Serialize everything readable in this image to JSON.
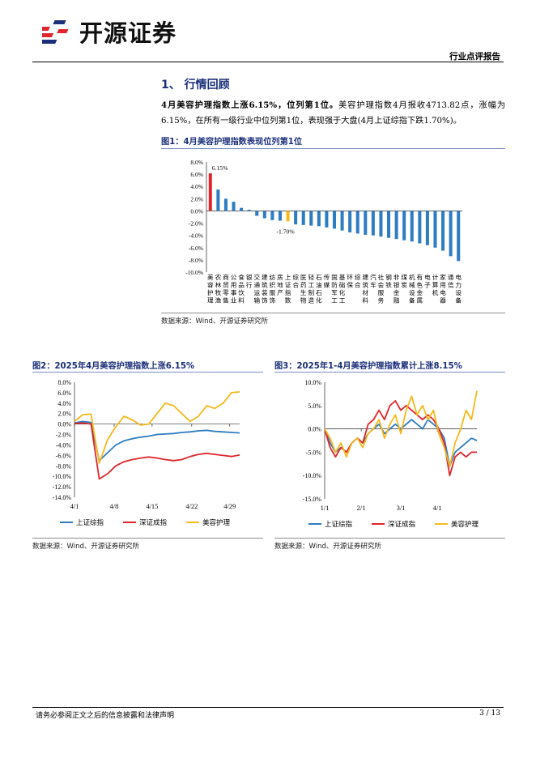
{
  "header": {
    "logo_text": "开源证券",
    "report_type": "行业点评报告"
  },
  "section": {
    "title": "1、 行情回顾",
    "lead_bold": "4月美容护理指数上涨6.15%，位列第1位。",
    "body": "美容护理指数4月报收4713.82点，涨幅为6.15%，在所有一级行业中位列第1位，表现强于大盘(4月上证综指下跌1.70%)。"
  },
  "figure1": {
    "caption": "图1：4月美容护理指数表现位列第1位",
    "source": "数据来源：Wind、开源证券研究所"
  },
  "figure2": {
    "caption": "图2：2025年4月美容护理指数上涨6.15%",
    "source": "数据来源：Wind、开源证券研究所"
  },
  "figure3": {
    "caption": "图3：2025年1-4月美容护理指数累计上涨8.15%",
    "source": "数据来源：Wind、开源证券研究所"
  },
  "footer": {
    "disclaimer": "请务必参阅正文之后的信息披露和法律声明",
    "page": "3 / 13"
  },
  "chart_data": [
    {
      "id": "fig1",
      "type": "bar",
      "title": "4月美容护理指数表现位列第1位",
      "categories": [
        "美容护理",
        "农林牧渔",
        "商贸零售",
        "公用事业",
        "食品饮料",
        "银行",
        "交通运输",
        "建筑装饰",
        "纺织服饰",
        "房地产",
        "上证指数",
        "综合",
        "医药生物",
        "轻工制造",
        "石油石化",
        "传媒",
        "国防军工",
        "基础化工",
        "环保",
        "综合",
        "建筑材料",
        "汽车",
        "社会服务",
        "钢铁",
        "非银金融",
        "煤炭",
        "机械设备",
        "有色金属",
        "电子",
        "计算机",
        "家用电器",
        "通信",
        "电力设备"
      ],
      "values": [
        6.15,
        3.5,
        2.0,
        1.5,
        0.5,
        0.2,
        -0.8,
        -1.2,
        -1.5,
        -1.6,
        -1.7,
        -2.2,
        -2.3,
        -2.4,
        -2.5,
        -2.7,
        -2.9,
        -3.2,
        -3.5,
        -3.7,
        -3.9,
        -4.0,
        -4.2,
        -4.4,
        -4.6,
        -4.8,
        -5.0,
        -5.3,
        -5.6,
        -6.0,
        -6.5,
        -7.4,
        -8.2
      ],
      "highlight": {
        "美容护理": "#e0262c",
        "上证指数": "#f4b91b"
      },
      "base_color": "#2e7cc2",
      "labels": [
        "6.15%",
        "-1.70%"
      ],
      "yticks": [
        "8.0%",
        "6.0%",
        "4.0%",
        "2.0%",
        "0.0%",
        "-2.0%",
        "-4.0%",
        "-6.0%",
        "-8.0%",
        "-10.0%"
      ],
      "ylim": [
        -10,
        8
      ]
    },
    {
      "id": "fig2",
      "type": "line",
      "title": "2025年4月美容护理指数上涨6.15%",
      "x": [
        "4/1",
        "4/2",
        "4/3",
        "4/7",
        "4/8",
        "4/9",
        "4/10",
        "4/11",
        "4/14",
        "4/15",
        "4/16",
        "4/17",
        "4/18",
        "4/21",
        "4/22",
        "4/23",
        "4/24",
        "4/25",
        "4/28",
        "4/29",
        "4/30"
      ],
      "xticks": [
        "4/1",
        "4/8",
        "4/15",
        "4/22",
        "4/29"
      ],
      "yticks": [
        "8.0%",
        "6.0%",
        "4.0%",
        "2.0%",
        "0.0%",
        "-2.0%",
        "-4.0%",
        "-6.0%",
        "-8.0%",
        "-10.0%",
        "-12.0%",
        "-14.0%"
      ],
      "ylim": [
        -14,
        8
      ],
      "series": [
        {
          "name": "上证综指",
          "color": "#2e7cc2",
          "values": [
            0.2,
            0.5,
            0.3,
            -7.0,
            -5.5,
            -4.0,
            -3.2,
            -2.8,
            -2.5,
            -2.3,
            -2.0,
            -1.9,
            -1.8,
            -1.6,
            -1.5,
            -1.3,
            -1.2,
            -1.4,
            -1.5,
            -1.6,
            -1.7
          ]
        },
        {
          "name": "深证成指",
          "color": "#e0262c",
          "values": [
            0.1,
            0.2,
            0.0,
            -10.5,
            -9.5,
            -8.0,
            -7.2,
            -6.8,
            -6.5,
            -6.3,
            -6.5,
            -6.8,
            -7.0,
            -6.8,
            -6.2,
            -5.8,
            -5.6,
            -5.8,
            -6.0,
            -6.2,
            -5.9
          ]
        },
        {
          "name": "美容护理",
          "color": "#f4b91b",
          "values": [
            0.5,
            1.8,
            1.9,
            -7.5,
            -3.0,
            -0.5,
            1.5,
            0.8,
            -0.2,
            0.0,
            2.0,
            4.0,
            3.5,
            2.0,
            0.5,
            1.5,
            3.5,
            3.0,
            4.0,
            6.0,
            6.15
          ]
        }
      ]
    },
    {
      "id": "fig3",
      "type": "line",
      "title": "2025年1-4月美容护理指数累计上涨8.15%",
      "xticks": [
        "1/1",
        "2/1",
        "3/1",
        "4/1"
      ],
      "yticks": [
        "10.0%",
        "5.0%",
        "0.0%",
        "-5.0%",
        "-10.0%",
        "-15.0%"
      ],
      "ylim": [
        -15,
        10
      ],
      "series": [
        {
          "name": "上证综指",
          "color": "#2e7cc2",
          "values": [
            0,
            -3,
            -5,
            -4,
            -5,
            -3,
            -2,
            -3,
            -1,
            0,
            1,
            -1,
            0,
            1,
            0,
            1,
            2,
            1,
            0,
            2,
            1,
            0,
            -2,
            -8,
            -5,
            -4,
            -3,
            -2,
            -2.5
          ]
        },
        {
          "name": "深证成指",
          "color": "#e0262c",
          "values": [
            0,
            -4,
            -6,
            -4,
            -5,
            -3,
            -2,
            -3,
            1,
            2,
            4,
            2,
            5,
            6,
            4,
            5,
            4,
            3,
            2,
            3,
            2,
            0,
            -3,
            -10,
            -6,
            -5,
            -6,
            -5,
            -5
          ]
        },
        {
          "name": "美容护理",
          "color": "#f4b91b",
          "values": [
            0,
            -2,
            -5,
            -3,
            -6,
            -3,
            -2,
            -4,
            -1,
            0,
            2,
            -2,
            1,
            3,
            -1,
            4,
            7,
            3,
            5,
            2,
            4,
            -1,
            -4,
            -8,
            -3,
            0,
            4,
            2,
            8.15
          ]
        }
      ]
    }
  ]
}
